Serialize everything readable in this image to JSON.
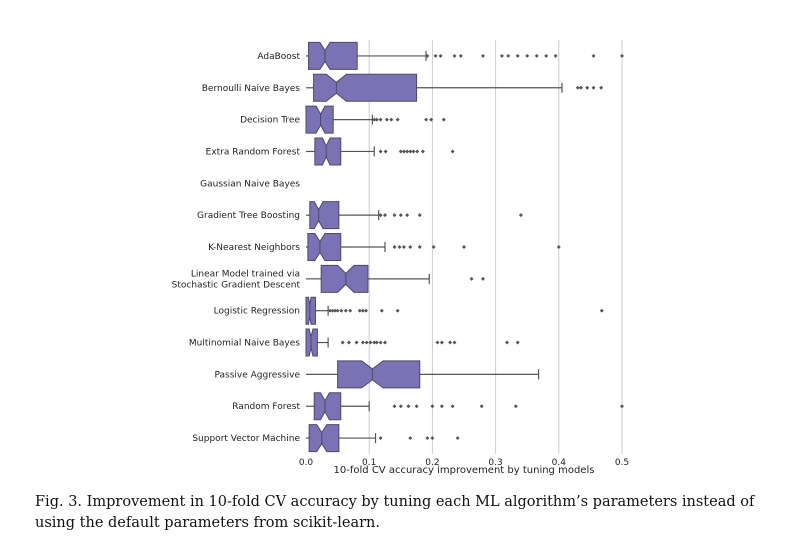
{
  "chart_data": {
    "type": "boxplot",
    "orientation": "horizontal",
    "notched": true,
    "xlabel": "10-fold CV accuracy improvement by tuning models",
    "xlim": [
      0.0,
      0.5
    ],
    "xticks": [
      "0.0",
      "0.1",
      "0.2",
      "0.3",
      "0.4",
      "0.5"
    ],
    "grid": "vertical",
    "box_color": "#7a72b5",
    "categories": [
      {
        "label": [
          "AdaBoost"
        ],
        "q1": 0.004,
        "median": 0.03,
        "q3": 0.081,
        "notch": [
          0.022,
          0.038
        ],
        "whisker_low": 0.0,
        "whisker_high": 0.19,
        "outliers": [
          0.192,
          0.205,
          0.213,
          0.235,
          0.245,
          0.28,
          0.31,
          0.32,
          0.335,
          0.35,
          0.365,
          0.38,
          0.395,
          0.455,
          0.5
        ]
      },
      {
        "label": [
          "Bernoulli Naive Bayes"
        ],
        "q1": 0.012,
        "median": 0.048,
        "q3": 0.175,
        "notch": [
          0.032,
          0.064
        ],
        "whisker_low": 0.0,
        "whisker_high": 0.405,
        "outliers": [
          0.43,
          0.435,
          0.445,
          0.455,
          0.467
        ]
      },
      {
        "label": [
          "Decision Tree"
        ],
        "q1": 0.0,
        "median": 0.023,
        "q3": 0.043,
        "notch": [
          0.016,
          0.03
        ],
        "whisker_low": 0.0,
        "whisker_high": 0.105,
        "outliers": [
          0.108,
          0.112,
          0.118,
          0.128,
          0.135,
          0.145,
          0.19,
          0.198,
          0.218
        ]
      },
      {
        "label": [
          "Extra Random Forest"
        ],
        "q1": 0.014,
        "median": 0.032,
        "q3": 0.055,
        "notch": [
          0.026,
          0.038
        ],
        "whisker_low": 0.0,
        "whisker_high": 0.108,
        "outliers": [
          0.118,
          0.126,
          0.15,
          0.155,
          0.16,
          0.165,
          0.17,
          0.176,
          0.185,
          0.232
        ]
      },
      {
        "label": [
          "Gaussian Naive Bayes"
        ],
        "q1": 0.0,
        "median": 0.0,
        "q3": 0.0,
        "notch": [
          0.0,
          0.0
        ],
        "whisker_low": 0.0,
        "whisker_high": 0.0,
        "outliers": []
      },
      {
        "label": [
          "Gradient Tree Boosting"
        ],
        "q1": 0.006,
        "median": 0.02,
        "q3": 0.052,
        "notch": [
          0.013,
          0.027
        ],
        "whisker_low": 0.0,
        "whisker_high": 0.115,
        "outliers": [
          0.118,
          0.125,
          0.14,
          0.15,
          0.16,
          0.18,
          0.34
        ]
      },
      {
        "label": [
          "K-Nearest Neighbors"
        ],
        "q1": 0.003,
        "median": 0.022,
        "q3": 0.055,
        "notch": [
          0.014,
          0.03
        ],
        "whisker_low": 0.0,
        "whisker_high": 0.125,
        "outliers": [
          0.14,
          0.148,
          0.155,
          0.165,
          0.18,
          0.202,
          0.25,
          0.4
        ]
      },
      {
        "label": [
          "Linear Model trained via",
          "Stochastic Gradient Descent"
        ],
        "q1": 0.024,
        "median": 0.063,
        "q3": 0.098,
        "notch": [
          0.05,
          0.076
        ],
        "whisker_low": 0.0,
        "whisker_high": 0.195,
        "outliers": [
          0.262,
          0.28
        ]
      },
      {
        "label": [
          "Logistic Regression"
        ],
        "q1": 0.0,
        "median": 0.006,
        "q3": 0.015,
        "notch": [
          0.004,
          0.008
        ],
        "whisker_low": 0.0,
        "whisker_high": 0.035,
        "outliers": [
          0.038,
          0.042,
          0.046,
          0.05,
          0.056,
          0.063,
          0.07,
          0.085,
          0.09,
          0.095,
          0.12,
          0.145,
          0.468
        ]
      },
      {
        "label": [
          "Multinomial Naive Bayes"
        ],
        "q1": 0.0,
        "median": 0.008,
        "q3": 0.018,
        "notch": [
          0.005,
          0.011
        ],
        "whisker_low": 0.0,
        "whisker_high": 0.035,
        "outliers": [
          0.058,
          0.068,
          0.08,
          0.09,
          0.096,
          0.102,
          0.108,
          0.112,
          0.118,
          0.125,
          0.208,
          0.215,
          0.228,
          0.235,
          0.318,
          0.335
        ]
      },
      {
        "label": [
          "Passive Aggressive"
        ],
        "q1": 0.05,
        "median": 0.105,
        "q3": 0.18,
        "notch": [
          0.088,
          0.122
        ],
        "whisker_low": 0.0,
        "whisker_high": 0.368,
        "outliers": []
      },
      {
        "label": [
          "Random Forest"
        ],
        "q1": 0.013,
        "median": 0.03,
        "q3": 0.055,
        "notch": [
          0.023,
          0.037
        ],
        "whisker_low": 0.0,
        "whisker_high": 0.1,
        "outliers": [
          0.14,
          0.15,
          0.162,
          0.175,
          0.2,
          0.215,
          0.232,
          0.278,
          0.332,
          0.5
        ]
      },
      {
        "label": [
          "Support Vector Machine"
        ],
        "q1": 0.005,
        "median": 0.025,
        "q3": 0.052,
        "notch": [
          0.017,
          0.033
        ],
        "whisker_low": 0.0,
        "whisker_high": 0.11,
        "outliers": [
          0.118,
          0.165,
          0.192,
          0.2,
          0.24
        ]
      }
    ]
  },
  "caption": {
    "text": "Fig. 3.   Improvement in 10-fold CV accuracy by tuning each ML algorithm’s parameters instead of using the default parameters from scikit-learn."
  }
}
